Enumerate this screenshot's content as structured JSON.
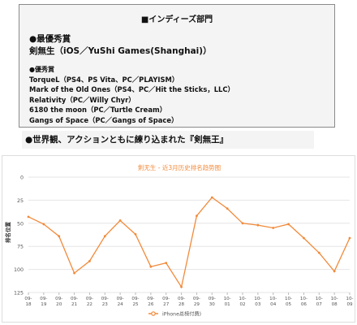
{
  "award_box": {
    "title": "■インディーズ部門",
    "grand_prize_heading": "●最優秀賞",
    "grand_prize_winner": "剣無生（iOS／YuShi Games(Shanghai)）",
    "excellence_heading": "●優秀賞",
    "excellence_items": [
      "TorqueL（PS4、PS Vita、PC／PLAYISM）",
      "Mark of the Old Ones（PS4、PC／Hit the Sticks，LLC）",
      "Relativity（PC／Willy Chyr）",
      "6180 the moon（PC／Turtle Cream）",
      "Gangs of Space（PC／Gangs of Space）"
    ]
  },
  "section_heading": "●世界観、アクションともに練り込まれた『剣無王』",
  "colors": {
    "series": "#f28a3a",
    "grid": "#e6e6e6",
    "axis_text": "#555555"
  },
  "chart_data": {
    "type": "line",
    "title": "剣无生 - 近3月历史排名趋势图",
    "ylabel": "排名位置",
    "ylim": [
      0,
      125
    ],
    "y_inverted": true,
    "y_ticks": [
      "0",
      "25",
      "50",
      "75",
      "100",
      "125"
    ],
    "categories": [
      "09-18",
      "09-19",
      "09-20",
      "09-21",
      "09-22",
      "09-23",
      "09-24",
      "09-25",
      "09-26",
      "09-27",
      "09-28",
      "09-29",
      "09-30",
      "10-01",
      "10-02",
      "10-03",
      "10-04",
      "10-05",
      "10-06",
      "10-07",
      "10-08",
      "10-09"
    ],
    "x_tick_top": [
      "09-",
      "09-",
      "09-",
      "09-",
      "09-",
      "09-",
      "09-",
      "09-",
      "09-",
      "09-",
      "09-",
      "09-",
      "09-",
      "10-",
      "10-",
      "10-",
      "10-",
      "10-",
      "10-",
      "10-",
      "10-",
      "10-"
    ],
    "x_tick_bottom": [
      "18",
      "19",
      "20",
      "21",
      "22",
      "23",
      "24",
      "25",
      "26",
      "27",
      "28",
      "29",
      "30",
      "01",
      "02",
      "03",
      "04",
      "05",
      "06",
      "07",
      "08",
      "09"
    ],
    "series": [
      {
        "name": "iPhone总榜付费)",
        "values": [
          43,
          51,
          64,
          104,
          91,
          64,
          47,
          62,
          97,
          93,
          119,
          42,
          22,
          34,
          50,
          52,
          55,
          51,
          66,
          82,
          102,
          66
        ]
      }
    ],
    "grid": true,
    "legend_position": "bottom"
  }
}
